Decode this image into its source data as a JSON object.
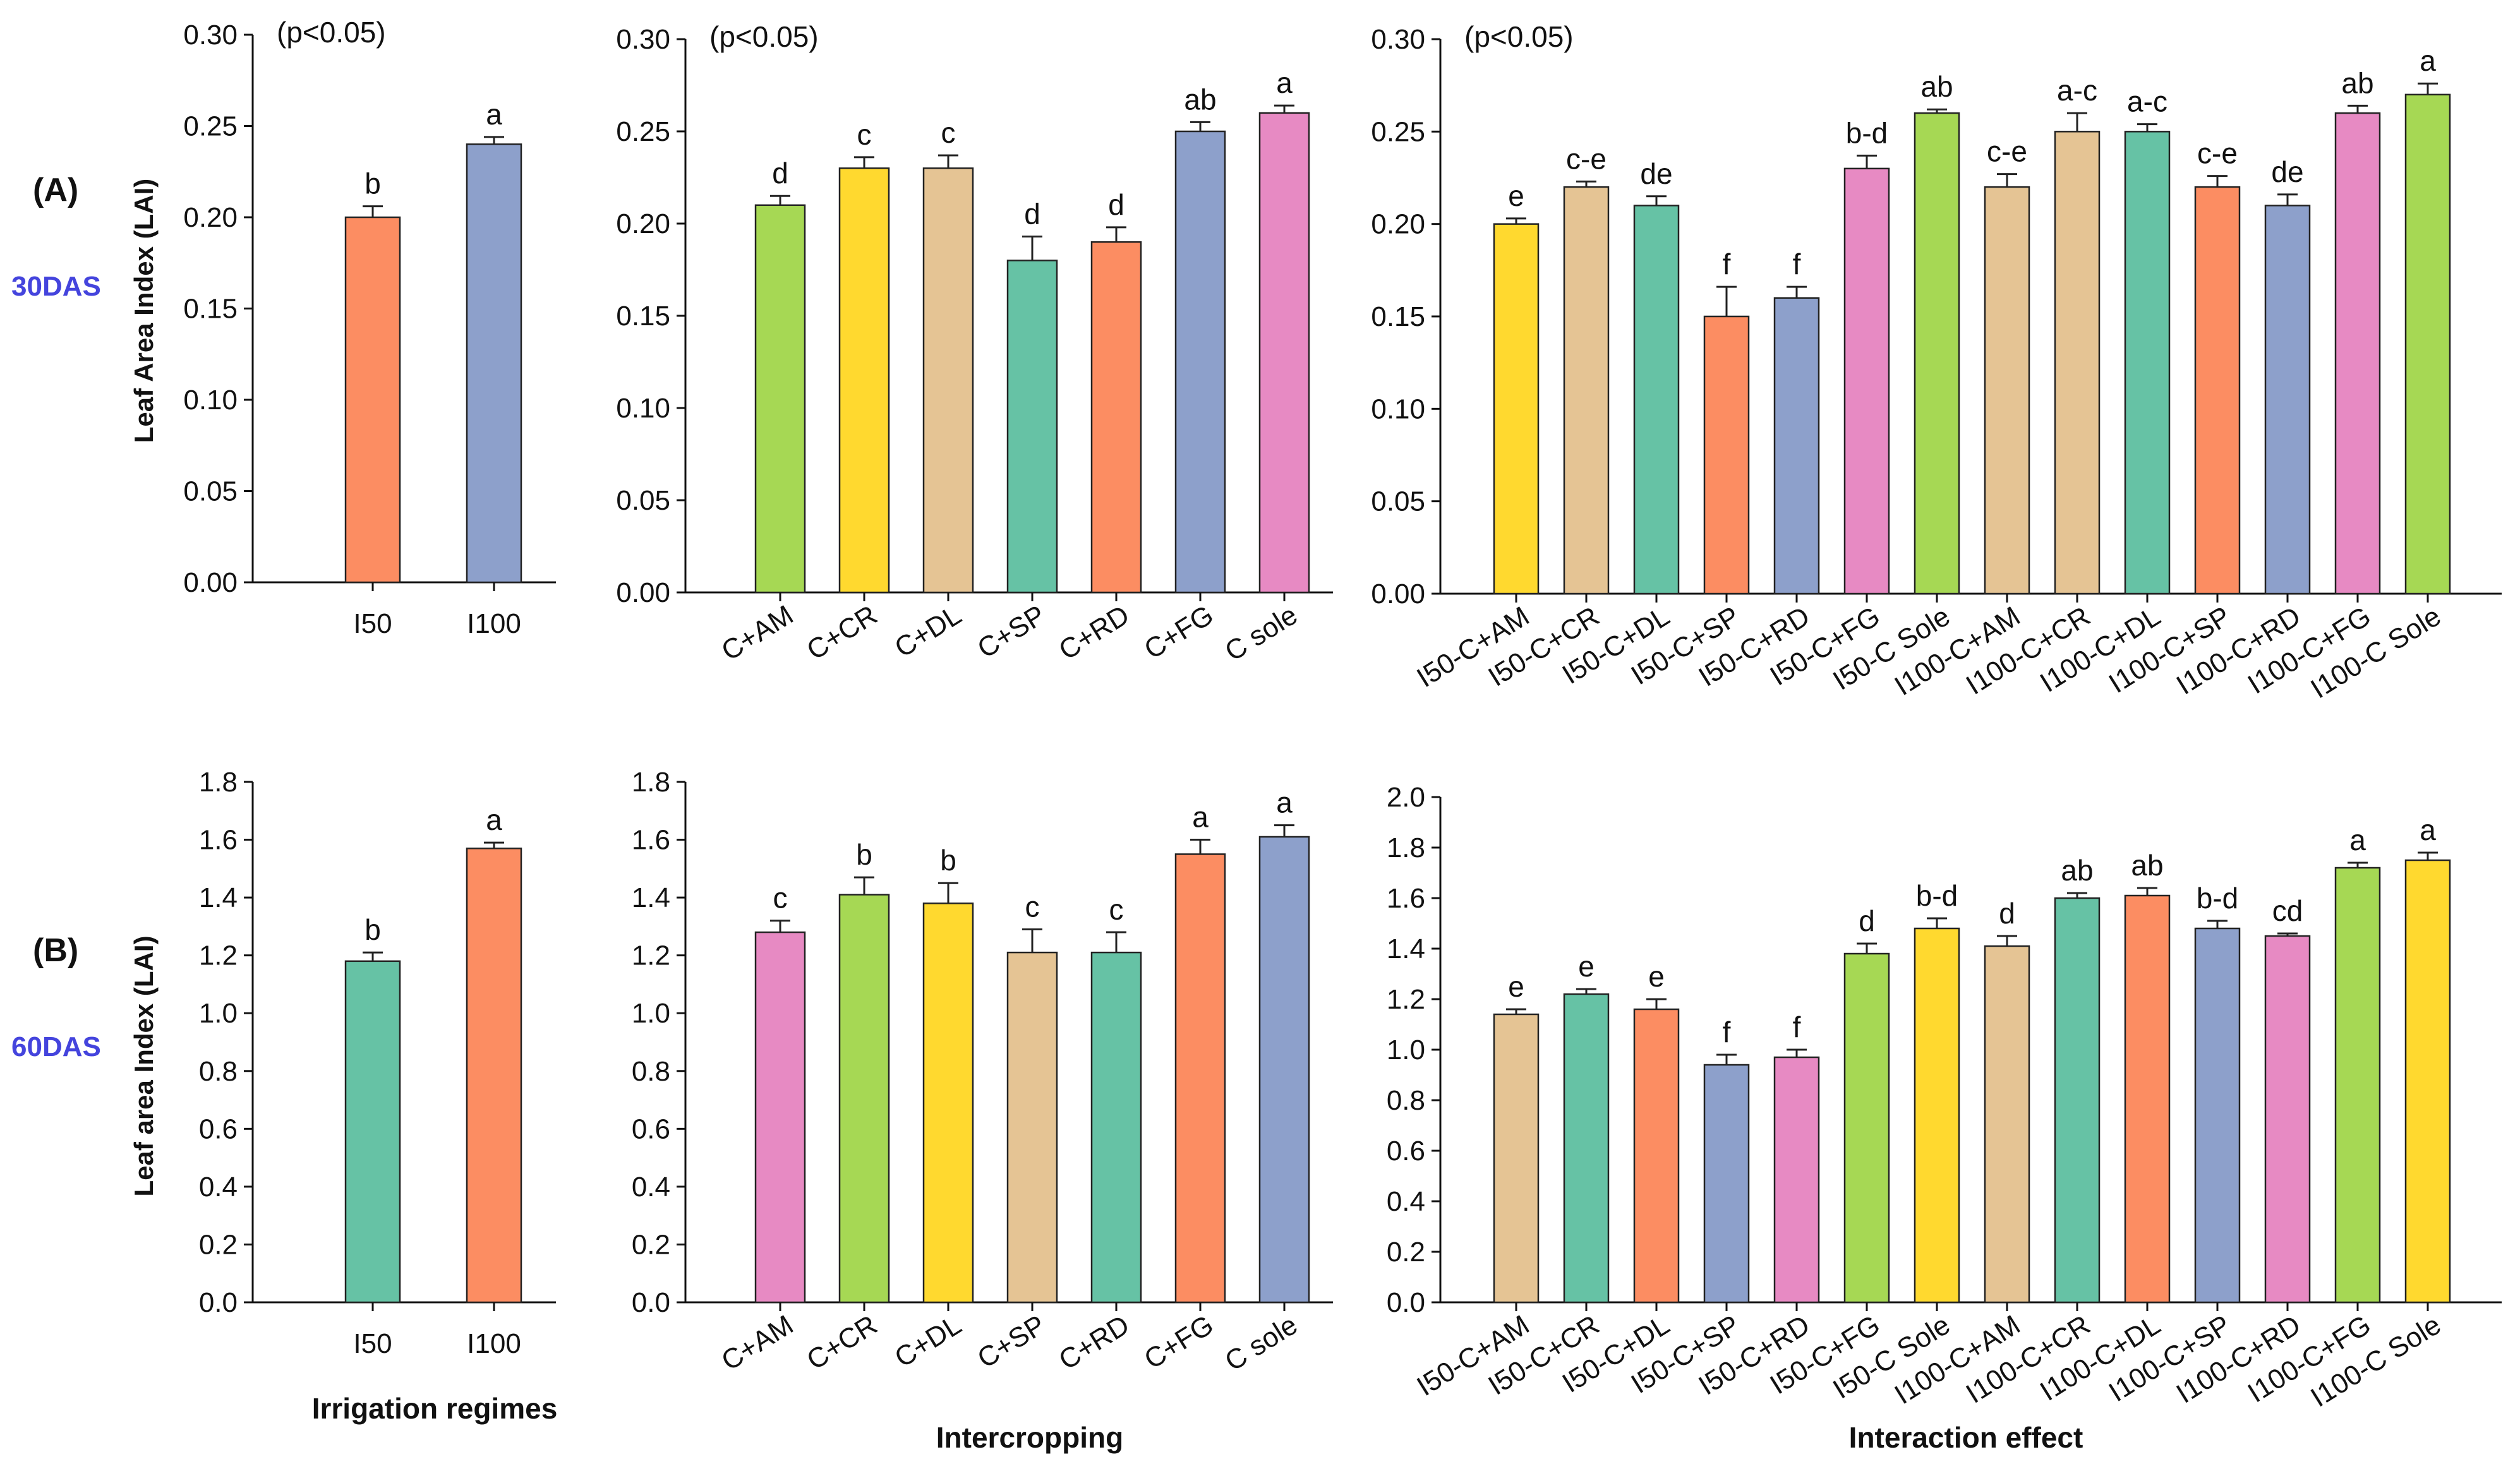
{
  "colors": {
    "green": "#A6D854",
    "yellow": "#FFD92F",
    "tan": "#E5C494",
    "teal": "#66C2A5",
    "orange": "#FC8D62",
    "blue": "#8DA0CB",
    "pink": "#E78AC3",
    "row_label_accent": "#4444DD"
  },
  "figure": {
    "row_a_label": "(A)",
    "row_a_das": "30DAS",
    "row_b_label": "(B)",
    "row_b_das": "60DAS",
    "x_title_irrigation": "Irrigation regimes",
    "x_title_intercropping": "Intercropping",
    "x_title_interaction": "Interaction effect"
  },
  "chart_data": [
    {
      "id": "a1",
      "type": "bar",
      "ylabel": "Leaf Area Index (LAI)",
      "note": "(p<0.05)",
      "ylim": [
        0,
        0.3
      ],
      "yticks": [
        "0.00",
        "0.05",
        "0.10",
        "0.15",
        "0.20",
        "0.25",
        "0.30"
      ],
      "categories": [
        "I50",
        "I100"
      ],
      "values": [
        0.2,
        0.24
      ],
      "errors": [
        0.006,
        0.004
      ],
      "letters": [
        "b",
        "a"
      ],
      "colors": [
        "orange",
        "blue"
      ]
    },
    {
      "id": "a2",
      "type": "bar",
      "ylabel": "",
      "note": "(p<0.05)",
      "ylim": [
        0,
        0.3
      ],
      "yticks": [
        "0.00",
        "0.05",
        "0.10",
        "0.15",
        "0.20",
        "0.25",
        "0.30"
      ],
      "categories": [
        "C+AM",
        "C+CR",
        "C+DL",
        "C+SP",
        "C+RD",
        "C+FG",
        "C sole"
      ],
      "values": [
        0.21,
        0.23,
        0.23,
        0.18,
        0.19,
        0.25,
        0.26
      ],
      "errors": [
        0.005,
        0.006,
        0.007,
        0.013,
        0.008,
        0.005,
        0.004
      ],
      "letters": [
        "d",
        "c",
        "c",
        "d",
        "d",
        "ab",
        "a"
      ],
      "colors": [
        "green",
        "yellow",
        "tan",
        "teal",
        "orange",
        "blue",
        "pink"
      ]
    },
    {
      "id": "a3",
      "type": "bar",
      "ylabel": "",
      "note": "(p<0.05)",
      "ylim": [
        0,
        0.3
      ],
      "yticks": [
        "0.00",
        "0.05",
        "0.10",
        "0.15",
        "0.20",
        "0.25",
        "0.30"
      ],
      "categories": [
        "I50-C+AM",
        "I50-C+CR",
        "I50-C+DL",
        "I50-C+SP",
        "I50-C+RD",
        "I50-C+FG",
        "I50-C Sole",
        "I100-C+AM",
        "I100-C+CR",
        "I100-C+DL",
        "I100-C+SP",
        "I100-C+RD",
        "I100-C+FG",
        "I100-C Sole"
      ],
      "values": [
        0.2,
        0.22,
        0.21,
        0.15,
        0.16,
        0.23,
        0.26,
        0.22,
        0.25,
        0.25,
        0.22,
        0.21,
        0.26,
        0.27
      ],
      "errors": [
        0.003,
        0.003,
        0.005,
        0.016,
        0.006,
        0.007,
        0.002,
        0.007,
        0.01,
        0.004,
        0.006,
        0.006,
        0.004,
        0.006
      ],
      "letters": [
        "e",
        "c-e",
        "de",
        "f",
        "f",
        "b-d",
        "ab",
        "c-e",
        "a-c",
        "a-c",
        "c-e",
        "de",
        "ab",
        "a"
      ],
      "colors": [
        "yellow",
        "tan",
        "teal",
        "orange",
        "blue",
        "pink",
        "green",
        "tan",
        "tan",
        "teal",
        "orange",
        "blue",
        "pink",
        "green"
      ]
    },
    {
      "id": "b1",
      "type": "bar",
      "ylabel": "Leaf area Index (LAI)",
      "note": "",
      "ylim": [
        0,
        1.8
      ],
      "yticks": [
        "0.0",
        "0.2",
        "0.4",
        "0.6",
        "0.8",
        "1.0",
        "1.2",
        "1.4",
        "1.6",
        "1.8"
      ],
      "categories": [
        "I50",
        "I100"
      ],
      "values": [
        1.18,
        1.57
      ],
      "errors": [
        0.03,
        0.02
      ],
      "letters": [
        "b",
        "a"
      ],
      "colors": [
        "teal",
        "orange"
      ]
    },
    {
      "id": "b2",
      "type": "bar",
      "ylabel": "",
      "note": "",
      "ylim": [
        0,
        1.8
      ],
      "yticks": [
        "0.0",
        "0.2",
        "0.4",
        "0.6",
        "0.8",
        "1.0",
        "1.2",
        "1.4",
        "1.6",
        "1.8"
      ],
      "categories": [
        "C+AM",
        "C+CR",
        "C+DL",
        "C+SP",
        "C+RD",
        "C+FG",
        "C sole"
      ],
      "values": [
        1.28,
        1.41,
        1.38,
        1.21,
        1.21,
        1.55,
        1.61
      ],
      "errors": [
        0.04,
        0.06,
        0.07,
        0.08,
        0.07,
        0.05,
        0.04
      ],
      "letters": [
        "c",
        "b",
        "b",
        "c",
        "c",
        "a",
        "a"
      ],
      "colors": [
        "pink",
        "green",
        "yellow",
        "tan",
        "teal",
        "orange",
        "blue"
      ]
    },
    {
      "id": "b3",
      "type": "bar",
      "ylabel": "",
      "note": "",
      "ylim": [
        0,
        2.0
      ],
      "yticks": [
        "0.0",
        "0.2",
        "0.4",
        "0.6",
        "0.8",
        "1.0",
        "1.2",
        "1.4",
        "1.6",
        "1.8",
        "2.0"
      ],
      "categories": [
        "I50-C+AM",
        "I50-C+CR",
        "I50-C+DL",
        "I50-C+SP",
        "I50-C+RD",
        "I50-C+FG",
        "I50-C Sole",
        "I100-C+AM",
        "I100-C+CR",
        "I100-C+DL",
        "I100-C+SP",
        "I100-C+RD",
        "I100-C+FG",
        "I100-C Sole"
      ],
      "values": [
        1.14,
        1.22,
        1.16,
        0.94,
        0.97,
        1.38,
        1.48,
        1.41,
        1.6,
        1.61,
        1.48,
        1.45,
        1.72,
        1.75
      ],
      "errors": [
        0.02,
        0.02,
        0.04,
        0.04,
        0.03,
        0.04,
        0.04,
        0.04,
        0.02,
        0.03,
        0.03,
        0.01,
        0.02,
        0.03
      ],
      "letters": [
        "e",
        "e",
        "e",
        "f",
        "f",
        "d",
        "b-d",
        "d",
        "ab",
        "ab",
        "b-d",
        "cd",
        "a",
        "a"
      ],
      "colors": [
        "tan",
        "teal",
        "orange",
        "blue",
        "pink",
        "green",
        "yellow",
        "tan",
        "teal",
        "orange",
        "blue",
        "pink",
        "green",
        "yellow"
      ]
    }
  ]
}
